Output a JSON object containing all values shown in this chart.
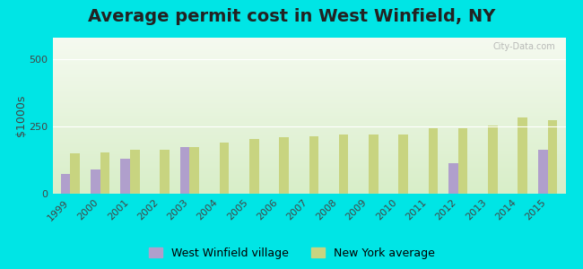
{
  "title": "Average permit cost in West Winfield, NY",
  "ylabel": "$1000s",
  "years": [
    1999,
    2000,
    2001,
    2002,
    2003,
    2004,
    2005,
    2006,
    2007,
    2008,
    2009,
    2010,
    2011,
    2012,
    2013,
    2014,
    2015
  ],
  "west_winfield": [
    75,
    90,
    130,
    null,
    175,
    null,
    null,
    null,
    null,
    null,
    null,
    null,
    null,
    115,
    null,
    null,
    165
  ],
  "ny_average": [
    150,
    155,
    165,
    165,
    175,
    190,
    205,
    210,
    215,
    220,
    220,
    220,
    245,
    245,
    255,
    285,
    275
  ],
  "bar_width": 0.32,
  "village_color": "#b09fcc",
  "ny_color": "#c8d480",
  "bg_outer": "#00e5e5",
  "bg_inner": "#eef5e0",
  "ylim": [
    0,
    580
  ],
  "yticks": [
    0,
    250,
    500
  ],
  "title_fontsize": 14,
  "label_fontsize": 9,
  "tick_fontsize": 8,
  "watermark": "City-Data.com",
  "legend_labels": [
    "West Winfield village",
    "New York average"
  ]
}
